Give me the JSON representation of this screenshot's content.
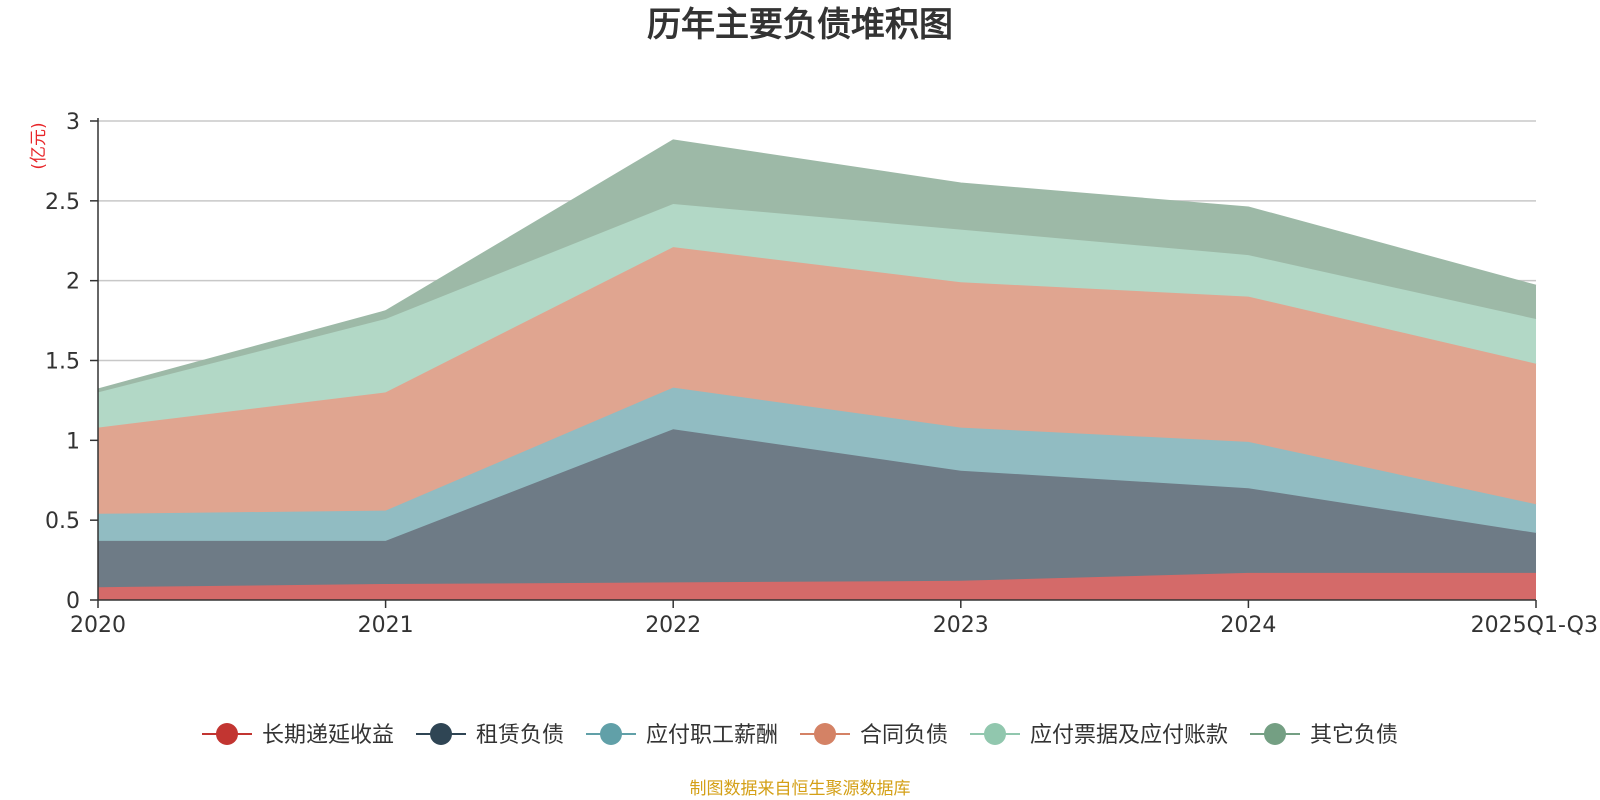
{
  "chart_data": {
    "type": "area",
    "stacked": true,
    "title": "历年主要负债堆积图",
    "unit_label": "(亿元)",
    "categories": [
      "2020",
      "2021",
      "2022",
      "2023",
      "2024",
      "2025Q1-Q3"
    ],
    "ylim": [
      0,
      3
    ],
    "yticks": [
      0,
      0.5,
      1,
      1.5,
      2,
      2.5,
      3
    ],
    "ytick_labels": [
      "0",
      "0.5",
      "1",
      "1.5",
      "2",
      "2.5",
      "3"
    ],
    "grid": true,
    "legend_position": "bottom",
    "series": [
      {
        "name": "长期递延收益",
        "color": "#c23531",
        "area_color": "#d46a69",
        "values": [
          0.08,
          0.1,
          0.11,
          0.12,
          0.17,
          0.17
        ]
      },
      {
        "name": "租赁负债",
        "color": "#2f4554",
        "area_color": "#6e7b86",
        "values": [
          0.29,
          0.27,
          0.96,
          0.69,
          0.53,
          0.25
        ]
      },
      {
        "name": "应付职工薪酬",
        "color": "#61a0a8",
        "area_color": "#91bcc2",
        "values": [
          0.17,
          0.19,
          0.26,
          0.27,
          0.29,
          0.18
        ]
      },
      {
        "name": "合同负债",
        "color": "#d48265",
        "area_color": "#e0a590",
        "values": [
          0.54,
          0.74,
          0.88,
          0.91,
          0.91,
          0.88
        ]
      },
      {
        "name": "应付票据及应付账款",
        "color": "#91c7ae",
        "area_color": "#b2d8c6",
        "values": [
          0.22,
          0.46,
          0.27,
          0.33,
          0.26,
          0.28
        ]
      },
      {
        "name": "其它负债",
        "color": "#749f83",
        "area_color": "#9db9a7",
        "values": [
          0.02,
          0.05,
          0.4,
          0.29,
          0.3,
          0.21
        ]
      }
    ]
  },
  "source_note": "制图数据来自恒生聚源数据库"
}
